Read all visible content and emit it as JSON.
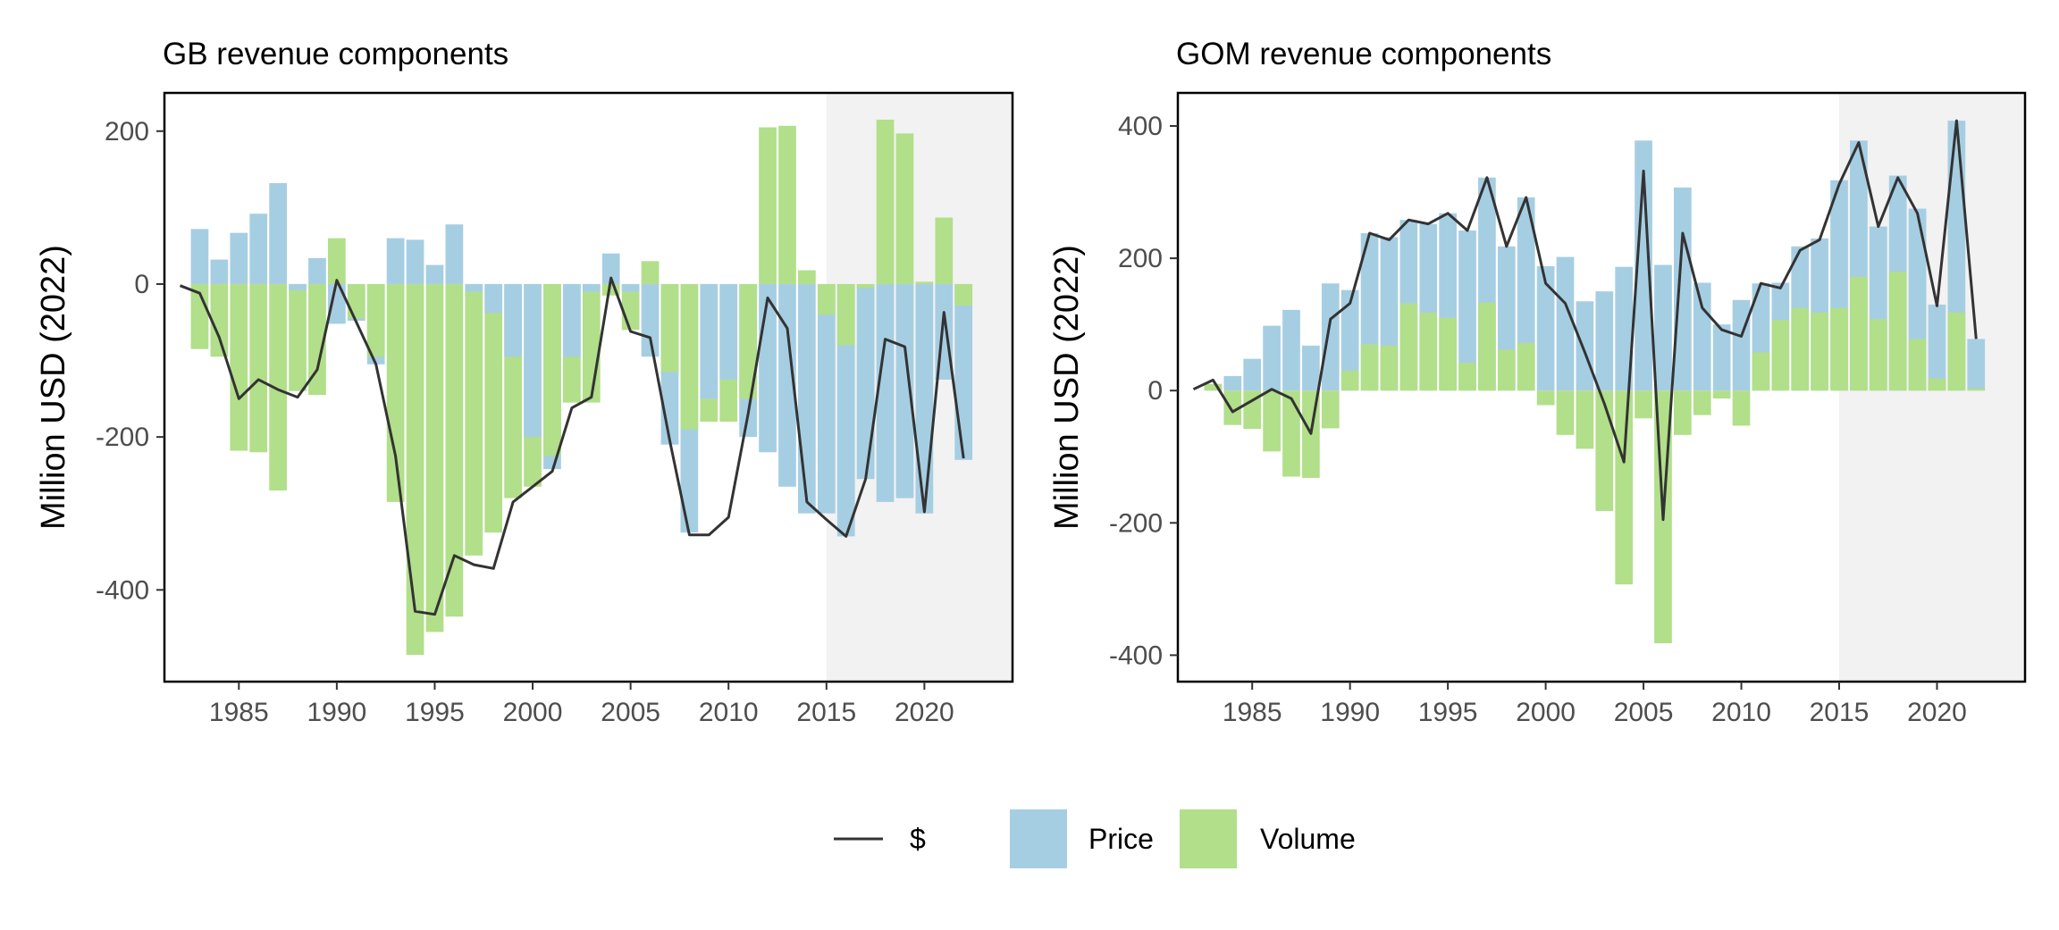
{
  "legend": {
    "line_label": "$",
    "price_label": "Price",
    "volume_label": "Volume",
    "colors": {
      "line": "#333333",
      "price": "#A6CEE3",
      "volume": "#B2DF8A"
    }
  },
  "chart_data": [
    {
      "type": "bar",
      "title": "GB revenue components",
      "ylabel": "Million USD (2022)",
      "xlabel": "",
      "xlim": [
        1981.2,
        2024.5
      ],
      "ylim": [
        -520,
        250
      ],
      "x_ticks": [
        1985,
        1990,
        1995,
        2000,
        2005,
        2010,
        2015,
        2020
      ],
      "y_ticks": [
        -400,
        -200,
        0,
        200
      ],
      "shaded_region": [
        2015,
        2024.5
      ],
      "grid": false,
      "legend_position": "bottom",
      "years": [
        1982,
        1983,
        1984,
        1985,
        1986,
        1987,
        1988,
        1989,
        1990,
        1991,
        1992,
        1993,
        1994,
        1995,
        1996,
        1997,
        1998,
        1999,
        2000,
        2001,
        2002,
        2003,
        2004,
        2005,
        2006,
        2007,
        2008,
        2009,
        2010,
        2011,
        2012,
        2013,
        2014,
        2015,
        2016,
        2017,
        2018,
        2019,
        2020,
        2021,
        2022
      ],
      "series": [
        {
          "name": "Price",
          "type": "bar",
          "values": [
            null,
            72,
            32,
            67,
            92,
            132,
            -8,
            34,
            -52,
            -48,
            -105,
            60,
            58,
            25,
            78,
            -10,
            -38,
            -95,
            -200,
            -242,
            -95,
            -10,
            40,
            -10,
            -95,
            -210,
            -325,
            -150,
            -125,
            -200,
            -220,
            -265,
            -300,
            -300,
            -330,
            -255,
            -285,
            -280,
            -300,
            -125,
            -230
          ]
        },
        {
          "name": "Volume",
          "type": "bar",
          "values": [
            null,
            -85,
            -95,
            -218,
            -220,
            -270,
            -140,
            -145,
            60,
            -45,
            -95,
            -285,
            -485,
            -455,
            -435,
            -355,
            -325,
            -280,
            -265,
            -225,
            -155,
            -155,
            -15,
            -60,
            30,
            -115,
            -190,
            -180,
            -180,
            -150,
            205,
            207,
            18,
            -40,
            -80,
            -5,
            215,
            197,
            3,
            87,
            -28
          ]
        },
        {
          "name": "$",
          "type": "line",
          "values": [
            -2,
            -12,
            -70,
            -150,
            -125,
            -138,
            -148,
            -112,
            5,
            -50,
            -105,
            -225,
            -428,
            -432,
            -355,
            -367,
            -372,
            -285,
            -265,
            -245,
            -162,
            -148,
            8,
            -62,
            -70,
            -205,
            -328,
            -328,
            -305,
            -170,
            -18,
            -58,
            -285,
            -308,
            -330,
            -255,
            -72,
            -82,
            -298,
            -37,
            -228
          ]
        }
      ]
    },
    {
      "type": "bar",
      "title": "GOM revenue components",
      "ylabel": "Million USD (2022)",
      "xlabel": "",
      "xlim": [
        1981.2,
        2024.5
      ],
      "ylim": [
        -440,
        450
      ],
      "x_ticks": [
        1985,
        1990,
        1995,
        2000,
        2005,
        2010,
        2015,
        2020
      ],
      "y_ticks": [
        -400,
        -200,
        0,
        200,
        400
      ],
      "shaded_region": [
        2015,
        2024.5
      ],
      "grid": false,
      "legend_position": "bottom",
      "years": [
        1982,
        1983,
        1984,
        1985,
        1986,
        1987,
        1988,
        1989,
        1990,
        1991,
        1992,
        1993,
        1994,
        1995,
        1996,
        1997,
        1998,
        1999,
        2000,
        2001,
        2002,
        2003,
        2004,
        2005,
        2006,
        2007,
        2008,
        2009,
        2010,
        2011,
        2012,
        2013,
        2014,
        2015,
        2016,
        2017,
        2018,
        2019,
        2020,
        2021,
        2022
      ],
      "series": [
        {
          "name": "Price",
          "type": "bar",
          "values": [
            null,
            10,
            22,
            48,
            98,
            122,
            68,
            162,
            152,
            238,
            232,
            258,
            252,
            268,
            242,
            322,
            218,
            292,
            188,
            202,
            135,
            150,
            187,
            378,
            190,
            307,
            163,
            100,
            137,
            162,
            163,
            218,
            230,
            318,
            378,
            248,
            325,
            275,
            130,
            408,
            78
          ]
        },
        {
          "name": "Volume",
          "type": "bar",
          "values": [
            null,
            10,
            -52,
            -58,
            -92,
            -130,
            -132,
            -57,
            30,
            70,
            68,
            132,
            118,
            110,
            42,
            133,
            62,
            72,
            -22,
            -67,
            -88,
            -182,
            -293,
            -42,
            -382,
            -67,
            -37,
            -12,
            -53,
            58,
            107,
            125,
            118,
            125,
            172,
            108,
            180,
            78,
            18,
            118,
            3
          ]
        },
        {
          "name": "$",
          "type": "line",
          "values": [
            2,
            16,
            -32,
            -15,
            2,
            -12,
            -65,
            108,
            132,
            238,
            228,
            258,
            252,
            268,
            242,
            322,
            218,
            292,
            162,
            132,
            58,
            -20,
            -108,
            332,
            -195,
            238,
            125,
            92,
            82,
            162,
            155,
            212,
            228,
            312,
            375,
            248,
            322,
            268,
            128,
            408,
            78
          ]
        }
      ]
    }
  ]
}
